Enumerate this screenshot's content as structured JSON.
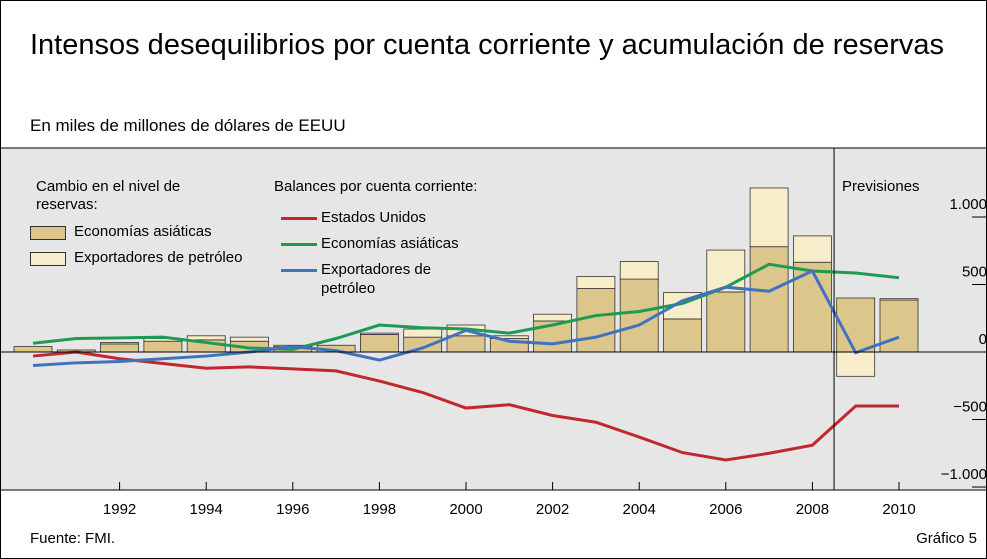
{
  "chart_data": {
    "type": "bar-line",
    "title": "Intensos desequilibrios por cuenta corriente y acumulación de reservas",
    "subtitle": "En miles de millones de dólares de EEUU",
    "source": "Fuente: FMI.",
    "figure_label": "Gráfico 5",
    "annotation": "Previsiones",
    "forecast_start": 2008.5,
    "bar_legend_title": "Cambio en el nivel de reservas:",
    "line_legend_title": "Balances por cuenta corriente:",
    "x": [
      1990,
      1991,
      1992,
      1993,
      1994,
      1995,
      1996,
      1997,
      1998,
      1999,
      2000,
      2001,
      2002,
      2003,
      2004,
      2005,
      2006,
      2007,
      2008,
      2009,
      2010
    ],
    "xticks": [
      1992,
      1994,
      1996,
      1998,
      2000,
      2002,
      2004,
      2006,
      2008,
      2010
    ],
    "bar_series": [
      {
        "name": "Economías asiáticas",
        "color": "#dcc68c",
        "values": [
          40,
          15,
          60,
          80,
          90,
          80,
          40,
          50,
          130,
          110,
          120,
          100,
          230,
          470,
          540,
          245,
          445,
          780,
          665,
          400,
          385
        ]
      },
      {
        "name": "Exportadores de petróleo",
        "color": "#f8edcb",
        "values": [
          0,
          0,
          10,
          20,
          30,
          30,
          10,
          0,
          10,
          60,
          80,
          20,
          50,
          90,
          130,
          195,
          310,
          435,
          195,
          -180,
          10
        ]
      }
    ],
    "line_series": [
      {
        "name": "Estados Unidos",
        "color": "#c0282e",
        "values": [
          -30,
          0,
          -50,
          -85,
          -120,
          -110,
          -125,
          -140,
          -215,
          -300,
          -415,
          -390,
          -470,
          -520,
          -630,
          -745,
          -800,
          -750,
          -690,
          -400,
          -400
        ]
      },
      {
        "name": "Economías asiáticas",
        "color": "#1e9a52",
        "values": [
          65,
          100,
          105,
          110,
          70,
          30,
          20,
          100,
          200,
          180,
          170,
          140,
          200,
          270,
          300,
          360,
          480,
          650,
          600,
          585,
          550
        ]
      },
      {
        "name": "Exportadores de petróleo",
        "color": "#3f73c0",
        "values": [
          -100,
          -80,
          -70,
          -50,
          -30,
          0,
          40,
          10,
          -60,
          30,
          160,
          80,
          60,
          110,
          200,
          380,
          480,
          450,
          600,
          -5,
          110
        ]
      }
    ],
    "ylim": [
      -1022,
      1511
    ],
    "yticks": [
      {
        "value": 1000,
        "label": "1.000"
      },
      500,
      0,
      {
        "value": -500,
        "label": "−500"
      },
      {
        "value": -1000,
        "label": "−1.000"
      }
    ]
  }
}
